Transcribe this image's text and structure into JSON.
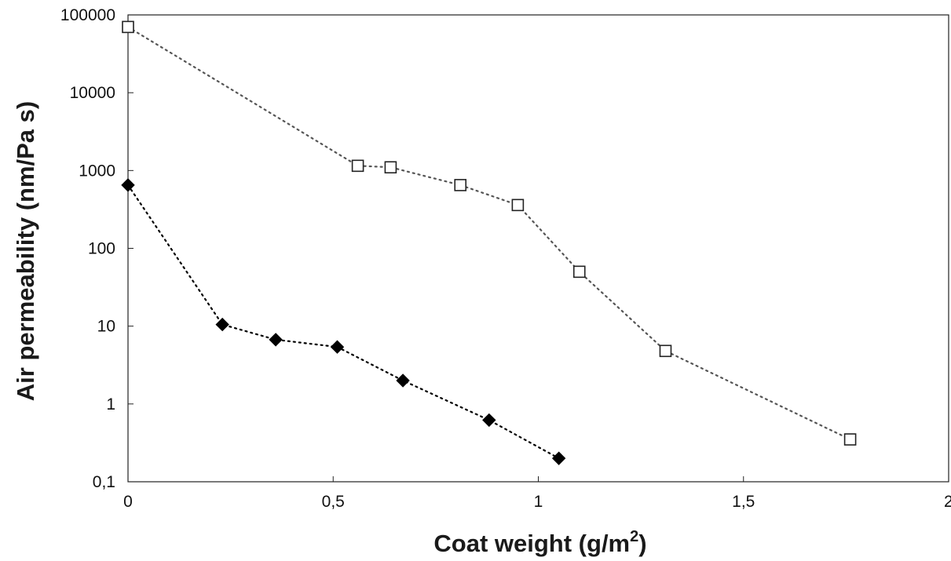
{
  "chart_data": {
    "type": "scatter",
    "title": "",
    "xlabel": {
      "text": "Coat weight (g/m",
      "superscript": "2",
      "suffix": ")"
    },
    "ylabel": "Air permeability (nm/Pa s)",
    "xlim": [
      0,
      2
    ],
    "ylim": [
      0.1,
      100000
    ],
    "yscale": "log",
    "grid": false,
    "legend": "none",
    "x_ticks": [
      {
        "value": 0,
        "label": "0"
      },
      {
        "value": 0.5,
        "label": "0,5"
      },
      {
        "value": 1,
        "label": "1"
      },
      {
        "value": 1.5,
        "label": "1,5"
      },
      {
        "value": 2,
        "label": "2"
      }
    ],
    "y_ticks": [
      {
        "value": 0.1,
        "label": "0,1"
      },
      {
        "value": 1,
        "label": "1"
      },
      {
        "value": 10,
        "label": "10"
      },
      {
        "value": 100,
        "label": "100"
      },
      {
        "value": 1000,
        "label": "1000"
      },
      {
        "value": 10000,
        "label": "10000"
      },
      {
        "value": 100000,
        "label": "100000"
      }
    ],
    "series": [
      {
        "marker": "open-square",
        "line": "dotted",
        "color": "#555555",
        "points": [
          {
            "x": 0.0,
            "y": 70000
          },
          {
            "x": 0.56,
            "y": 1150
          },
          {
            "x": 0.64,
            "y": 1100
          },
          {
            "x": 0.81,
            "y": 650
          },
          {
            "x": 0.95,
            "y": 360
          },
          {
            "x": 1.1,
            "y": 50
          },
          {
            "x": 1.31,
            "y": 4.8
          },
          {
            "x": 1.76,
            "y": 0.35
          }
        ]
      },
      {
        "marker": "filled-diamond",
        "line": "dotted",
        "color": "#000000",
        "points": [
          {
            "x": 0.0,
            "y": 650
          },
          {
            "x": 0.23,
            "y": 10.5
          },
          {
            "x": 0.36,
            "y": 6.7
          },
          {
            "x": 0.51,
            "y": 5.4
          },
          {
            "x": 0.67,
            "y": 2.0
          },
          {
            "x": 0.88,
            "y": 0.62
          },
          {
            "x": 1.05,
            "y": 0.2
          }
        ]
      }
    ]
  }
}
